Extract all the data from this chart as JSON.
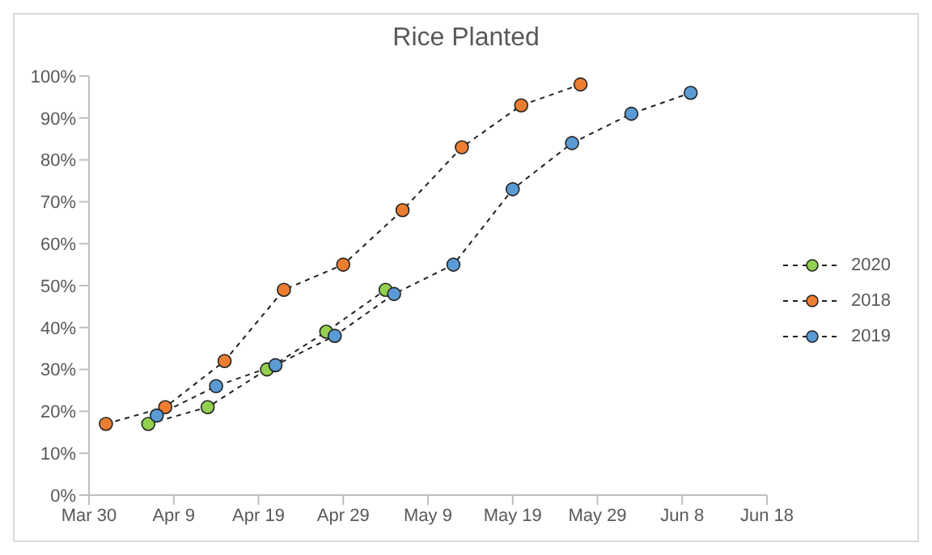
{
  "chart_data": {
    "type": "line",
    "title": "Rice Planted",
    "xlim": [
      "--03-30",
      "--06-18"
    ],
    "xticks": [
      {
        "value": "--03-30",
        "label": "Mar 30"
      },
      {
        "value": "--04-09",
        "label": "Apr 9"
      },
      {
        "value": "--04-19",
        "label": "Apr 19"
      },
      {
        "value": "--04-29",
        "label": "Apr 29"
      },
      {
        "value": "--05-09",
        "label": "May 9"
      },
      {
        "value": "--05-19",
        "label": "May 19"
      },
      {
        "value": "--05-29",
        "label": "May 29"
      },
      {
        "value": "--06-08",
        "label": "Jun 8"
      },
      {
        "value": "--06-18",
        "label": "Jun 18"
      }
    ],
    "ylim": [
      0,
      100
    ],
    "yticks": [
      {
        "value": 0,
        "label": "0%"
      },
      {
        "value": 10,
        "label": "10%"
      },
      {
        "value": 20,
        "label": "20%"
      },
      {
        "value": 30,
        "label": "30%"
      },
      {
        "value": 40,
        "label": "40%"
      },
      {
        "value": 50,
        "label": "50%"
      },
      {
        "value": 60,
        "label": "60%"
      },
      {
        "value": 70,
        "label": "70%"
      },
      {
        "value": 80,
        "label": "80%"
      },
      {
        "value": 90,
        "label": "90%"
      },
      {
        "value": 100,
        "label": "100%"
      }
    ],
    "series": [
      {
        "name": "2020",
        "color": "#92d050",
        "x": [
          "--04-06",
          "--04-13",
          "--04-20",
          "--04-27",
          "--05-04"
        ],
        "values": [
          17,
          21,
          30,
          39,
          49
        ]
      },
      {
        "name": "2018",
        "color": "#ed7d31",
        "x": [
          "--04-01",
          "--04-08",
          "--04-15",
          "--04-22",
          "--04-29",
          "--05-06",
          "--05-13",
          "--05-20",
          "--05-27"
        ],
        "values": [
          17,
          21,
          32,
          49,
          55,
          68,
          83,
          93,
          98
        ]
      },
      {
        "name": "2019",
        "color": "#5b9bd5",
        "x": [
          "--04-07",
          "--04-14",
          "--04-21",
          "--04-28",
          "--05-05",
          "--05-12",
          "--05-19",
          "--05-26",
          "--06-02",
          "--06-09"
        ],
        "values": [
          19,
          26,
          31,
          38,
          48,
          55,
          73,
          84,
          91,
          96
        ]
      }
    ],
    "legend": "right",
    "marker": "circle",
    "line_style": "dashed",
    "grid": false
  }
}
